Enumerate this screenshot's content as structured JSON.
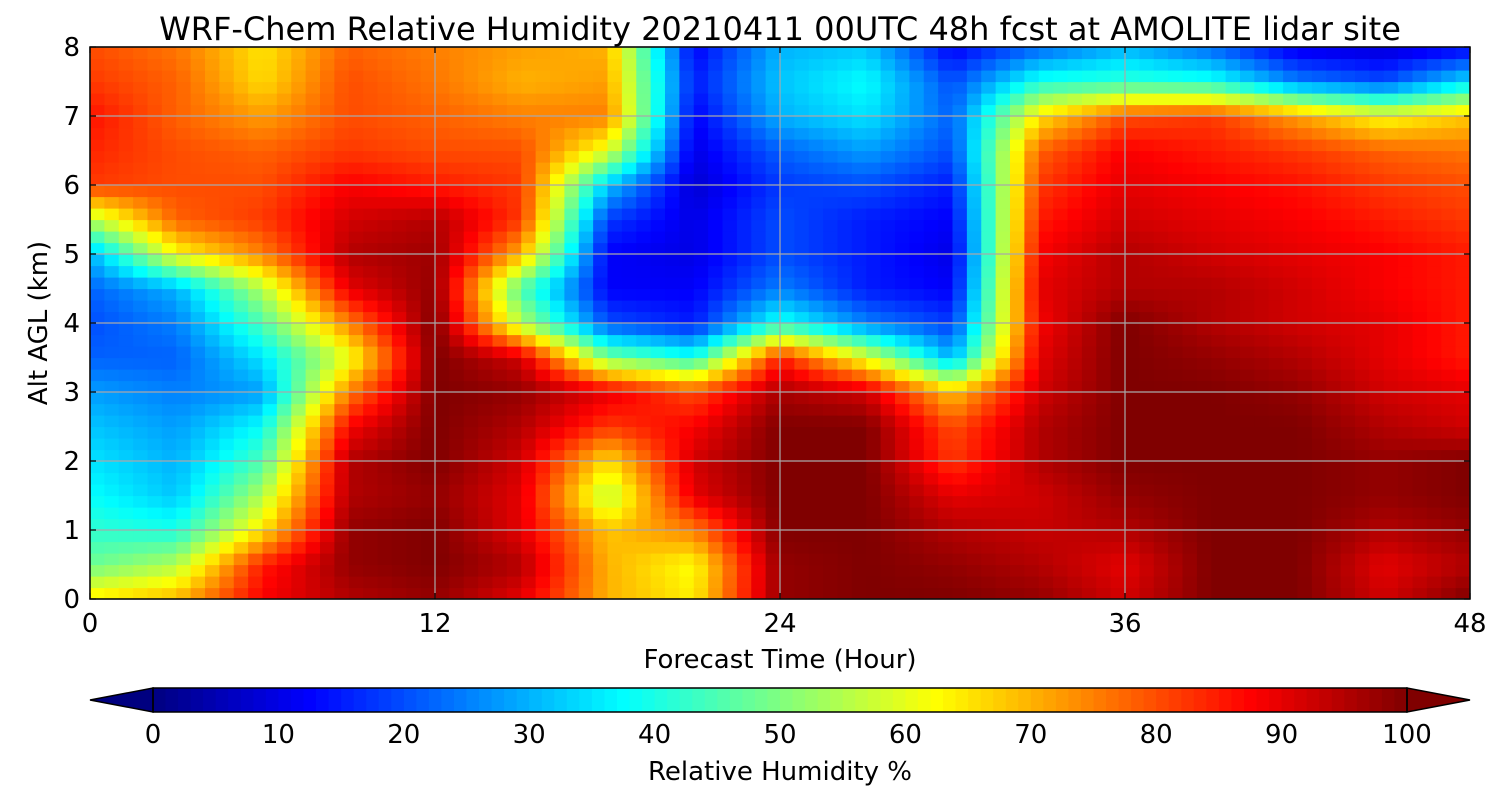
{
  "chart_data": {
    "type": "heatmap",
    "title": "WRF-Chem Relative Humidity 20210411 00UTC 48h fcst at AMOLITE lidar site",
    "xlabel": "Forecast Time (Hour)",
    "ylabel": "Alt AGL (km)",
    "xlim": [
      0,
      48
    ],
    "ylim": [
      0,
      8
    ],
    "x_ticks": [
      0,
      12,
      24,
      36,
      48
    ],
    "y_ticks": [
      0,
      1,
      2,
      3,
      4,
      5,
      6,
      7,
      8
    ],
    "grid": true,
    "x": [
      0,
      3,
      6,
      9,
      12,
      15,
      18,
      21,
      24,
      27,
      30,
      33,
      36,
      39,
      42,
      45,
      48
    ],
    "y": [
      0,
      0.5,
      1,
      1.5,
      2,
      2.5,
      3,
      3.5,
      4,
      4.5,
      5,
      5.5,
      6,
      6.5,
      7,
      7.5,
      8
    ],
    "z": [
      [
        65,
        70,
        88,
        95,
        98,
        90,
        70,
        64,
        98,
        100,
        100,
        98,
        92,
        100,
        100,
        92,
        100
      ],
      [
        48,
        55,
        85,
        98,
        100,
        95,
        70,
        62,
        98,
        100,
        98,
        95,
        90,
        100,
        100,
        90,
        95
      ],
      [
        42,
        40,
        65,
        98,
        100,
        90,
        68,
        75,
        100,
        100,
        95,
        93,
        95,
        100,
        100,
        95,
        98
      ],
      [
        38,
        32,
        55,
        95,
        98,
        90,
        55,
        90,
        100,
        100,
        90,
        92,
        98,
        100,
        100,
        98,
        100
      ],
      [
        35,
        30,
        45,
        95,
        100,
        92,
        65,
        92,
        100,
        100,
        82,
        95,
        100,
        100,
        100,
        98,
        100
      ],
      [
        32,
        28,
        38,
        88,
        100,
        95,
        82,
        88,
        100,
        100,
        80,
        95,
        100,
        100,
        100,
        95,
        92
      ],
      [
        28,
        25,
        28,
        75,
        100,
        98,
        90,
        80,
        96,
        92,
        68,
        92,
        100,
        100,
        98,
        92,
        90
      ],
      [
        22,
        22,
        35,
        60,
        100,
        92,
        50,
        40,
        85,
        60,
        30,
        90,
        100,
        98,
        95,
        90,
        85
      ],
      [
        20,
        25,
        45,
        75,
        100,
        55,
        20,
        15,
        40,
        25,
        18,
        88,
        100,
        95,
        92,
        90,
        85
      ],
      [
        22,
        30,
        55,
        90,
        98,
        45,
        12,
        12,
        25,
        15,
        12,
        90,
        95,
        95,
        92,
        88,
        85
      ],
      [
        30,
        62,
        75,
        95,
        97,
        70,
        12,
        10,
        20,
        15,
        10,
        88,
        95,
        92,
        90,
        88,
        85
      ],
      [
        55,
        78,
        82,
        92,
        95,
        82,
        18,
        10,
        20,
        15,
        12,
        85,
        92,
        90,
        88,
        85,
        82
      ],
      [
        82,
        80,
        80,
        88,
        85,
        82,
        32,
        8,
        18,
        20,
        15,
        82,
        90,
        88,
        86,
        82,
        80
      ],
      [
        84,
        80,
        78,
        82,
        80,
        80,
        60,
        10,
        22,
        28,
        20,
        78,
        88,
        85,
        82,
        78,
        76
      ],
      [
        86,
        78,
        72,
        80,
        78,
        75,
        75,
        12,
        30,
        35,
        22,
        65,
        80,
        82,
        72,
        62,
        68
      ],
      [
        82,
        78,
        66,
        80,
        76,
        70,
        72,
        15,
        32,
        38,
        20,
        40,
        42,
        40,
        25,
        20,
        35
      ],
      [
        80,
        76,
        65,
        78,
        75,
        72,
        70,
        12,
        30,
        32,
        12,
        22,
        30,
        22,
        10,
        8,
        12
      ]
    ],
    "colorbar": {
      "label": "Relative Humidity %",
      "ticks": [
        0,
        10,
        20,
        30,
        40,
        50,
        60,
        70,
        80,
        90,
        100
      ],
      "min": 0,
      "max": 100,
      "extend": "both",
      "colormap": "jet"
    }
  }
}
